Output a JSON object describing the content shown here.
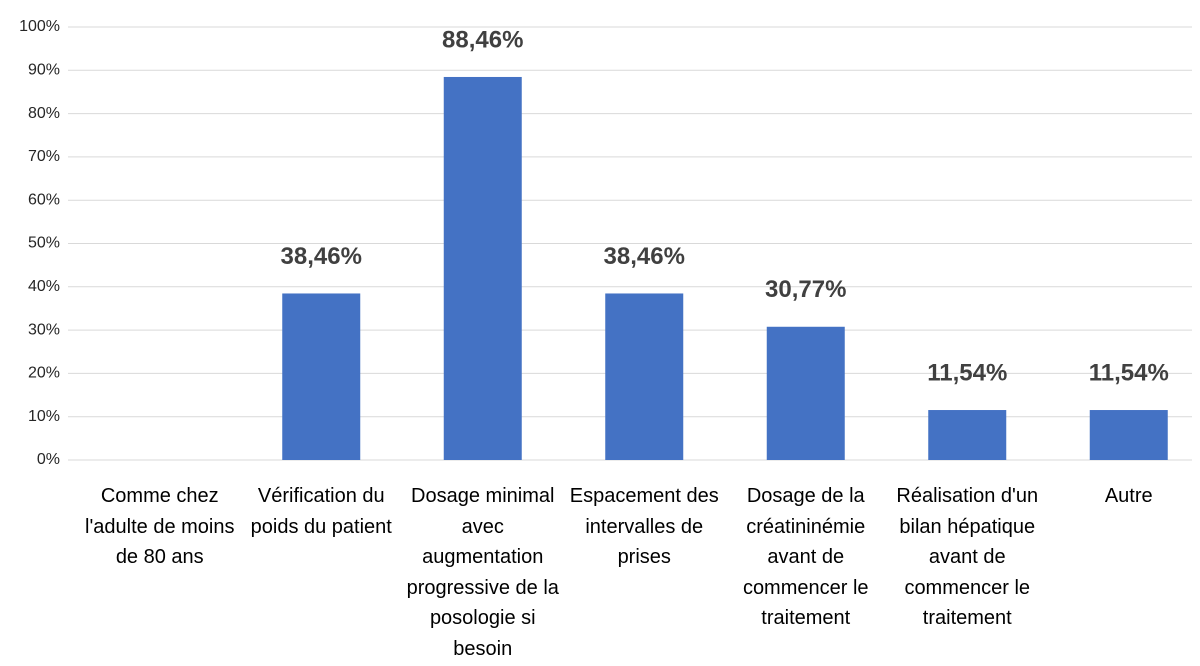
{
  "chart_data": {
    "type": "bar",
    "categories": [
      "Comme chez l'adulte de moins de 80 ans",
      "Vérification du poids du patient",
      "Dosage minimal avec augmentation progressive de la posologie si besoin",
      "Espacement des intervalles de prises",
      "Dosage de la créatininémie avant de commencer le traitement",
      "Réalisation d'un bilan hépatique avant de commencer le traitement",
      "Autre"
    ],
    "values": [
      0,
      38.46,
      88.46,
      38.46,
      30.77,
      11.54,
      11.54
    ],
    "value_labels": [
      null,
      "38,46%",
      "88,46%",
      "38,46%",
      "30,77%",
      "11,54%",
      "11,54%"
    ],
    "color": "#4472c4",
    "ylim": [
      0,
      100
    ],
    "yticks": [
      {
        "value": 0,
        "label": "0%"
      },
      {
        "value": 10,
        "label": "10%"
      },
      {
        "value": 20,
        "label": "20%"
      },
      {
        "value": 30,
        "label": "30%"
      },
      {
        "value": 40,
        "label": "40%"
      },
      {
        "value": 50,
        "label": "50%"
      },
      {
        "value": 60,
        "label": "60%"
      },
      {
        "value": 70,
        "label": "70%"
      },
      {
        "value": 80,
        "label": "80%"
      },
      {
        "value": 90,
        "label": "90%"
      },
      {
        "value": 100,
        "label": "100%"
      }
    ],
    "grid": true
  }
}
